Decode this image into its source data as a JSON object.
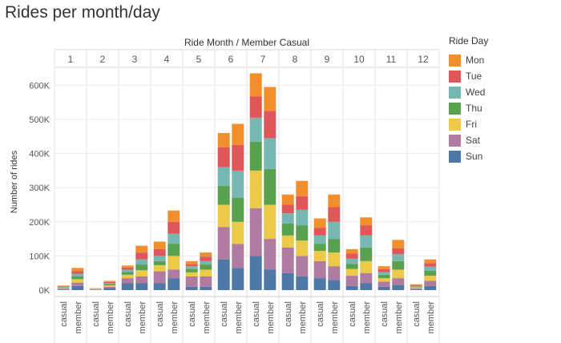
{
  "title": "Rides per month/day",
  "chart_data": {
    "type": "bar",
    "stacked": true,
    "title": "Rides per month/day",
    "column_header_title": "Ride Month  /  Member Casual",
    "ylabel": "Number of rides",
    "ylim": [
      0,
      660000
    ],
    "yticks": [
      0,
      100000,
      200000,
      300000,
      400000,
      500000,
      600000
    ],
    "ytick_labels": [
      "0K",
      "100K",
      "200K",
      "300K",
      "400K",
      "500K",
      "600K"
    ],
    "months": [
      "1",
      "2",
      "3",
      "4",
      "5",
      "6",
      "7",
      "8",
      "9",
      "10",
      "11",
      "12"
    ],
    "member_types": [
      "casual",
      "member"
    ],
    "legend_title": "Ride Day",
    "legend_placement": "right",
    "grid": true,
    "days": [
      "Mon",
      "Tue",
      "Wed",
      "Thu",
      "Fri",
      "Sat",
      "Sun"
    ],
    "stack_order_bottom_to_top": [
      "Sun",
      "Sat",
      "Fri",
      "Thu",
      "Wed",
      "Tue",
      "Mon"
    ],
    "colors": {
      "Mon": "#f28e2b",
      "Tue": "#e15759",
      "Wed": "#76b7b2",
      "Thu": "#59a14f",
      "Fri": "#edc948",
      "Sat": "#b07aa1",
      "Sun": "#4e79a7"
    },
    "bars": [
      {
        "month": "1",
        "type": "casual",
        "values": {
          "Sun": 2000,
          "Sat": 2000,
          "Fri": 2000,
          "Thu": 1500,
          "Wed": 1500,
          "Tue": 1500,
          "Mon": 2500
        }
      },
      {
        "month": "1",
        "type": "member",
        "values": {
          "Sun": 12000,
          "Sat": 10000,
          "Fri": 10000,
          "Thu": 8000,
          "Wed": 8000,
          "Tue": 8000,
          "Mon": 9000
        }
      },
      {
        "month": "2",
        "type": "casual",
        "values": {
          "Sun": 1000,
          "Sat": 1000,
          "Fri": 1000,
          "Thu": 500,
          "Wed": 500,
          "Tue": 500,
          "Mon": 1000
        }
      },
      {
        "month": "2",
        "type": "member",
        "values": {
          "Sun": 6000,
          "Sat": 4000,
          "Fri": 4000,
          "Thu": 4000,
          "Wed": 3000,
          "Tue": 3000,
          "Mon": 3000
        }
      },
      {
        "month": "3",
        "type": "casual",
        "values": {
          "Sun": 20000,
          "Sat": 15000,
          "Fri": 10000,
          "Thu": 8000,
          "Wed": 7000,
          "Tue": 6000,
          "Mon": 6000
        }
      },
      {
        "month": "3",
        "type": "member",
        "values": {
          "Sun": 20000,
          "Sat": 20000,
          "Fri": 18000,
          "Thu": 17000,
          "Wed": 15000,
          "Tue": 20000,
          "Mon": 20000
        }
      },
      {
        "month": "4",
        "type": "casual",
        "values": {
          "Sun": 20000,
          "Sat": 35000,
          "Fri": 18000,
          "Thu": 12000,
          "Wed": 15000,
          "Tue": 20000,
          "Mon": 22000
        }
      },
      {
        "month": "4",
        "type": "member",
        "values": {
          "Sun": 35000,
          "Sat": 25000,
          "Fri": 40000,
          "Thu": 35000,
          "Wed": 30000,
          "Tue": 35000,
          "Mon": 33000
        }
      },
      {
        "month": "5",
        "type": "casual",
        "values": {
          "Sun": 10000,
          "Sat": 30000,
          "Fri": 12000,
          "Thu": 10000,
          "Wed": 8000,
          "Tue": 6000,
          "Mon": 9000
        }
      },
      {
        "month": "5",
        "type": "member",
        "values": {
          "Sun": 10000,
          "Sat": 30000,
          "Fri": 20000,
          "Thu": 15000,
          "Wed": 10000,
          "Tue": 13000,
          "Mon": 12000
        }
      },
      {
        "month": "6",
        "type": "casual",
        "values": {
          "Sun": 90000,
          "Sat": 95000,
          "Fri": 65000,
          "Thu": 55000,
          "Wed": 55000,
          "Tue": 58000,
          "Mon": 42000
        }
      },
      {
        "month": "6",
        "type": "member",
        "values": {
          "Sun": 65000,
          "Sat": 70000,
          "Fri": 65000,
          "Thu": 70000,
          "Wed": 80000,
          "Tue": 75000,
          "Mon": 62000
        }
      },
      {
        "month": "7",
        "type": "casual",
        "values": {
          "Sun": 100000,
          "Sat": 140000,
          "Fri": 110000,
          "Thu": 85000,
          "Wed": 70000,
          "Tue": 62000,
          "Mon": 68000
        }
      },
      {
        "month": "7",
        "type": "member",
        "values": {
          "Sun": 60000,
          "Sat": 90000,
          "Fri": 100000,
          "Thu": 105000,
          "Wed": 90000,
          "Tue": 80000,
          "Mon": 70000
        }
      },
      {
        "month": "8",
        "type": "casual",
        "values": {
          "Sun": 50000,
          "Sat": 75000,
          "Fri": 35000,
          "Thu": 35000,
          "Wed": 30000,
          "Tue": 25000,
          "Mon": 30000
        }
      },
      {
        "month": "8",
        "type": "member",
        "values": {
          "Sun": 40000,
          "Sat": 60000,
          "Fri": 45000,
          "Thu": 45000,
          "Wed": 45000,
          "Tue": 40000,
          "Mon": 45000
        }
      },
      {
        "month": "9",
        "type": "casual",
        "values": {
          "Sun": 35000,
          "Sat": 50000,
          "Fri": 30000,
          "Thu": 20000,
          "Wed": 25000,
          "Tue": 22000,
          "Mon": 28000
        }
      },
      {
        "month": "9",
        "type": "member",
        "values": {
          "Sun": 30000,
          "Sat": 40000,
          "Fri": 40000,
          "Thu": 40000,
          "Wed": 50000,
          "Tue": 43000,
          "Mon": 37000
        }
      },
      {
        "month": "10",
        "type": "casual",
        "values": {
          "Sun": 12000,
          "Sat": 30000,
          "Fri": 20000,
          "Thu": 15000,
          "Wed": 15000,
          "Tue": 15000,
          "Mon": 13000
        }
      },
      {
        "month": "10",
        "type": "member",
        "values": {
          "Sun": 20000,
          "Sat": 30000,
          "Fri": 35000,
          "Thu": 40000,
          "Wed": 35000,
          "Tue": 30000,
          "Mon": 23000
        }
      },
      {
        "month": "11",
        "type": "casual",
        "values": {
          "Sun": 10000,
          "Sat": 15000,
          "Fri": 10000,
          "Thu": 10000,
          "Wed": 8000,
          "Tue": 8000,
          "Mon": 9000
        }
      },
      {
        "month": "11",
        "type": "member",
        "values": {
          "Sun": 15000,
          "Sat": 20000,
          "Fri": 25000,
          "Thu": 25000,
          "Wed": 20000,
          "Tue": 17000,
          "Mon": 25000
        }
      },
      {
        "month": "12",
        "type": "casual",
        "values": {
          "Sun": 2000,
          "Sat": 3000,
          "Fri": 3000,
          "Thu": 2000,
          "Wed": 2000,
          "Tue": 2000,
          "Mon": 3000
        }
      },
      {
        "month": "12",
        "type": "member",
        "values": {
          "Sun": 12000,
          "Sat": 15000,
          "Fri": 15000,
          "Thu": 15000,
          "Wed": 12000,
          "Tue": 10000,
          "Mon": 11000
        }
      }
    ]
  }
}
